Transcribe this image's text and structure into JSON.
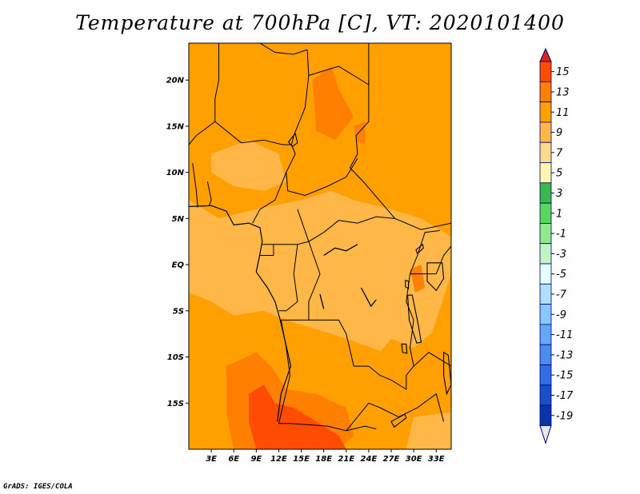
{
  "title": "Temperature at 700hPa [C], VT: 2020101400",
  "credit": "GrADS: IGES/COLA",
  "map": {
    "lon_range": [
      0,
      35
    ],
    "lat_range": [
      -20,
      24
    ],
    "lat_ticks": [
      {
        "value": 20,
        "label": "20N"
      },
      {
        "value": 15,
        "label": "15N"
      },
      {
        "value": 10,
        "label": "10N"
      },
      {
        "value": 5,
        "label": "5N"
      },
      {
        "value": 0,
        "label": "EQ"
      },
      {
        "value": -5,
        "label": "5S"
      },
      {
        "value": -10,
        "label": "10S"
      },
      {
        "value": -15,
        "label": "15S"
      }
    ],
    "lon_ticks": [
      {
        "value": 3,
        "label": "3E"
      },
      {
        "value": 6,
        "label": "6E"
      },
      {
        "value": 9,
        "label": "9E"
      },
      {
        "value": 12,
        "label": "12E"
      },
      {
        "value": 15,
        "label": "15E"
      },
      {
        "value": 18,
        "label": "18E"
      },
      {
        "value": 21,
        "label": "21E"
      },
      {
        "value": 24,
        "label": "24E"
      },
      {
        "value": 27,
        "label": "27E"
      },
      {
        "value": 30,
        "label": "30E"
      },
      {
        "value": 33,
        "label": "33E"
      }
    ],
    "base_color": "#ffa000",
    "regions": [
      {
        "name": "tropical-band-7-9",
        "color": "#ffb847",
        "points": [
          [
            0,
            7
          ],
          [
            4,
            5
          ],
          [
            9,
            6
          ],
          [
            12,
            6.5
          ],
          [
            15,
            7
          ],
          [
            19,
            8
          ],
          [
            22,
            7
          ],
          [
            27,
            6
          ],
          [
            31,
            5
          ],
          [
            35,
            3
          ],
          [
            35,
            -1
          ],
          [
            33,
            -6
          ],
          [
            31,
            -11
          ],
          [
            26,
            -9.5
          ],
          [
            21,
            -8
          ],
          [
            17,
            -7
          ],
          [
            13,
            -6
          ],
          [
            10,
            -5
          ],
          [
            6,
            -5.5
          ],
          [
            3,
            -4
          ],
          [
            0,
            -3
          ]
        ]
      },
      {
        "name": "tropical-band-7-9-north",
        "color": "#ffb847",
        "points": [
          [
            3,
            12
          ],
          [
            8,
            13.5
          ],
          [
            12,
            12
          ],
          [
            13,
            9
          ],
          [
            10,
            8
          ],
          [
            6,
            8.5
          ],
          [
            3,
            10
          ]
        ]
      },
      {
        "name": "east-africa-9-11",
        "color": "#ffa000",
        "points": [
          [
            27,
            -8
          ],
          [
            30,
            -9
          ],
          [
            33,
            -7
          ],
          [
            35,
            -9
          ],
          [
            35,
            -20
          ],
          [
            30,
            -19
          ],
          [
            26,
            -16
          ],
          [
            24,
            -11
          ]
        ]
      },
      {
        "name": "southwest-warm-11-13",
        "color": "#ff7f00",
        "points": [
          [
            5,
            -11
          ],
          [
            9,
            -9.5
          ],
          [
            11,
            -11
          ],
          [
            13,
            -13.5
          ],
          [
            17,
            -14
          ],
          [
            21,
            -15.5
          ],
          [
            22,
            -18.5
          ],
          [
            20,
            -20
          ],
          [
            6,
            -20
          ],
          [
            5,
            -16
          ]
        ]
      },
      {
        "name": "southwest-hot-13-15",
        "color": "#ff4c00",
        "points": [
          [
            8,
            -14
          ],
          [
            10,
            -13
          ],
          [
            11.5,
            -15
          ],
          [
            14,
            -15.5
          ],
          [
            17,
            -17
          ],
          [
            20,
            -18.5
          ],
          [
            21,
            -20
          ],
          [
            9,
            -20
          ],
          [
            8,
            -17
          ]
        ]
      },
      {
        "name": "northern-hotspot-1",
        "color": "#ff7f00",
        "points": [
          [
            16.5,
            20
          ],
          [
            19,
            21.5
          ],
          [
            20,
            19
          ],
          [
            22,
            16
          ],
          [
            19.5,
            13.5
          ],
          [
            17,
            14.5
          ],
          [
            16.8,
            17
          ]
        ]
      },
      {
        "name": "northern-hotspot-2",
        "color": "#ff7f00",
        "points": [
          [
            22,
            15
          ],
          [
            23.5,
            15.5
          ],
          [
            23.5,
            13
          ],
          [
            22.4,
            13.4
          ]
        ]
      },
      {
        "name": "east-hotspot",
        "color": "#ff7f00",
        "points": [
          [
            29.5,
            -0.5
          ],
          [
            31,
            0
          ],
          [
            31.5,
            -2.5
          ],
          [
            30.2,
            -3
          ]
        ]
      },
      {
        "name": "southeast-cool",
        "color": "#ffb847",
        "points": [
          [
            30,
            -16.5
          ],
          [
            35,
            -16
          ],
          [
            35,
            -20
          ],
          [
            29,
            -20
          ]
        ]
      }
    ],
    "borders": [
      [
        [
          9.5,
          24
        ],
        [
          11.5,
          23
        ],
        [
          14,
          22.8
        ],
        [
          15.8,
          23.3
        ]
      ],
      [
        [
          15.8,
          23.3
        ],
        [
          16,
          20.5
        ],
        [
          15.5,
          17
        ],
        [
          14,
          14
        ],
        [
          13.7,
          13
        ]
      ],
      [
        [
          16,
          20.5
        ],
        [
          20,
          21.5
        ],
        [
          24,
          19.5
        ],
        [
          24,
          24
        ]
      ],
      [
        [
          24,
          20
        ],
        [
          24,
          15.5
        ],
        [
          22.3,
          14
        ],
        [
          22.5,
          12
        ],
        [
          21.5,
          10.5
        ],
        [
          23.5,
          8.8
        ],
        [
          27.5,
          5
        ],
        [
          31,
          3.8
        ],
        [
          35,
          4.5
        ]
      ],
      [
        [
          4,
          24
        ],
        [
          4,
          20
        ],
        [
          3.5,
          18
        ],
        [
          3.5,
          15.5
        ],
        [
          1,
          14
        ],
        [
          0,
          13
        ]
      ],
      [
        [
          3.5,
          15.5
        ],
        [
          7,
          13.2
        ],
        [
          10,
          13.5
        ],
        [
          12.5,
          13
        ],
        [
          13.7,
          13
        ]
      ],
      [
        [
          13.7,
          13
        ],
        [
          14.2,
          12
        ],
        [
          13,
          10
        ],
        [
          13.2,
          8
        ],
        [
          15.5,
          7.5
        ],
        [
          18.5,
          8.5
        ],
        [
          21,
          9.5
        ],
        [
          22.5,
          11.5
        ]
      ],
      [
        [
          13,
          10
        ],
        [
          11.5,
          7
        ],
        [
          9.5,
          6
        ],
        [
          8.5,
          4.5
        ]
      ],
      [
        [
          2.5,
          9
        ],
        [
          3,
          7
        ],
        [
          2.7,
          6.4
        ]
      ],
      [
        [
          0.5,
          11
        ],
        [
          1,
          8
        ],
        [
          1.2,
          6.2
        ]
      ],
      [
        [
          14.5,
          6
        ],
        [
          16,
          2.5
        ],
        [
          18,
          3.5
        ],
        [
          20,
          4.8
        ],
        [
          22.5,
          4.5
        ],
        [
          25,
          5.2
        ],
        [
          27.5,
          5
        ]
      ],
      [
        [
          9.8,
          2.2
        ],
        [
          11.3,
          2.2
        ],
        [
          13,
          2.2
        ],
        [
          14.5,
          2.2
        ],
        [
          16,
          2.5
        ]
      ],
      [
        [
          11.3,
          2.2
        ],
        [
          11.3,
          1
        ],
        [
          9.5,
          1
        ]
      ],
      [
        [
          14.5,
          2.2
        ],
        [
          14,
          -1
        ],
        [
          14.5,
          -4
        ],
        [
          13,
          -5
        ],
        [
          12,
          -5
        ]
      ],
      [
        [
          16,
          2.5
        ],
        [
          17.5,
          -1
        ],
        [
          16,
          -4
        ],
        [
          16,
          -6
        ],
        [
          12.3,
          -6
        ]
      ],
      [
        [
          12.3,
          -6
        ],
        [
          13,
          -9
        ],
        [
          13.5,
          -12
        ],
        [
          12,
          -17.2
        ],
        [
          13.5,
          -17.2
        ],
        [
          18.5,
          -17.5
        ],
        [
          21,
          -18
        ],
        [
          23.5,
          -17.5
        ],
        [
          25,
          -17.8
        ]
      ],
      [
        [
          16,
          -6
        ],
        [
          20,
          -6
        ],
        [
          21,
          -7.5
        ],
        [
          22,
          -11
        ],
        [
          24,
          -11
        ],
        [
          25.5,
          -12
        ],
        [
          27,
          -12.5
        ],
        [
          29,
          -13.5
        ],
        [
          29,
          -12
        ],
        [
          30,
          -11
        ],
        [
          29.5,
          -9
        ],
        [
          30,
          -6
        ],
        [
          29,
          -4
        ],
        [
          29.5,
          -1
        ],
        [
          30.5,
          1
        ]
      ],
      [
        [
          21,
          -18
        ],
        [
          24,
          -15
        ],
        [
          25.5,
          -15.5
        ],
        [
          28,
          -16.5
        ],
        [
          30.5,
          -15.5
        ],
        [
          33,
          -14
        ],
        [
          34,
          -17
        ]
      ],
      [
        [
          29.5,
          -1
        ],
        [
          33,
          -1
        ],
        [
          34,
          1
        ],
        [
          35,
          2
        ]
      ],
      [
        [
          30.5,
          1
        ],
        [
          31.5,
          3.5
        ],
        [
          33.5,
          3.7
        ]
      ],
      [
        [
          30,
          -11
        ],
        [
          32,
          -9.5
        ],
        [
          35,
          -11
        ]
      ]
    ],
    "coastline": [
      [
        0,
        6.3
      ],
      [
        3,
        6.4
      ],
      [
        5,
        5.8
      ],
      [
        6,
        4.3
      ],
      [
        8,
        4.5
      ],
      [
        9.5,
        4
      ],
      [
        9.8,
        2.5
      ],
      [
        9.4,
        0.8
      ],
      [
        9,
        -0.8
      ],
      [
        10.5,
        -2.5
      ],
      [
        11.5,
        -4
      ],
      [
        12.2,
        -6
      ],
      [
        13,
        -8.8
      ],
      [
        13.6,
        -11
      ],
      [
        12.3,
        -14
      ],
      [
        11.8,
        -17
      ]
    ],
    "lakes": [
      {
        "name": "lake-chad",
        "points": [
          [
            13.3,
            13.3
          ],
          [
            14.2,
            14.2
          ],
          [
            14.5,
            13.2
          ],
          [
            13.8,
            12.8
          ]
        ]
      },
      {
        "name": "lake-victoria",
        "points": [
          [
            31.8,
            0.2
          ],
          [
            33.8,
            0.2
          ],
          [
            34,
            -1.5
          ],
          [
            33,
            -2.8
          ],
          [
            31.8,
            -1.8
          ]
        ]
      },
      {
        "name": "lake-tanganyika",
        "points": [
          [
            29.2,
            -3.3
          ],
          [
            29.8,
            -3.3
          ],
          [
            30.6,
            -6.5
          ],
          [
            31,
            -8.4
          ],
          [
            30.4,
            -8.5
          ],
          [
            29.4,
            -6
          ]
        ]
      },
      {
        "name": "lake-malawi",
        "points": [
          [
            34,
            -9.5
          ],
          [
            34.6,
            -9.8
          ],
          [
            35,
            -13
          ],
          [
            34.4,
            -14
          ],
          [
            34,
            -12
          ]
        ]
      },
      {
        "name": "lake-kariba",
        "points": [
          [
            27,
            -17
          ],
          [
            28.8,
            -16.2
          ],
          [
            29,
            -16.6
          ],
          [
            27.4,
            -17.6
          ]
        ]
      },
      {
        "name": "lake-mweru",
        "points": [
          [
            28.4,
            -8.6
          ],
          [
            29,
            -8.6
          ],
          [
            29.1,
            -9.6
          ],
          [
            28.5,
            -9.5
          ]
        ]
      },
      {
        "name": "lake-albert",
        "points": [
          [
            30.3,
            1.6
          ],
          [
            31.2,
            2.2
          ],
          [
            31.3,
            1.8
          ],
          [
            30.5,
            1.2
          ]
        ]
      },
      {
        "name": "lake-kivu",
        "points": [
          [
            28.9,
            -1.7
          ],
          [
            29.3,
            -1.8
          ],
          [
            29.3,
            -2.6
          ],
          [
            28.9,
            -2.4
          ]
        ]
      }
    ],
    "rivers": [
      [
        [
          18,
          1
        ],
        [
          19.5,
          1.8
        ],
        [
          21,
          1.5
        ],
        [
          22.5,
          2.2
        ]
      ],
      [
        [
          23,
          -2.5
        ],
        [
          24.3,
          -4.5
        ],
        [
          25,
          -3.8
        ]
      ],
      [
        [
          17.5,
          -3.2
        ],
        [
          18,
          -4.8
        ]
      ]
    ]
  },
  "colorbar": {
    "labels": [
      "15",
      "13",
      "11",
      "9",
      "7",
      "5",
      "3",
      "1",
      "-1",
      "-3",
      "-5",
      "-7",
      "-9",
      "-11",
      "-13",
      "-15",
      "-17",
      "-19"
    ],
    "colors": [
      "#ff4c00",
      "#ff7f00",
      "#ffa000",
      "#ffb847",
      "#ffda8a",
      "#fff7b0",
      "#3cb84a",
      "#59d65b",
      "#90ea8a",
      "#bff5c5",
      "#e6ffff",
      "#b0e0ff",
      "#87c8ff",
      "#63a8f5",
      "#4a8ded",
      "#2f6ee0",
      "#1851c7",
      "#0a35a8"
    ],
    "top_color": "#d9261c",
    "bottom_color": "#e6e6f7",
    "boundary_color": "#00006e"
  }
}
